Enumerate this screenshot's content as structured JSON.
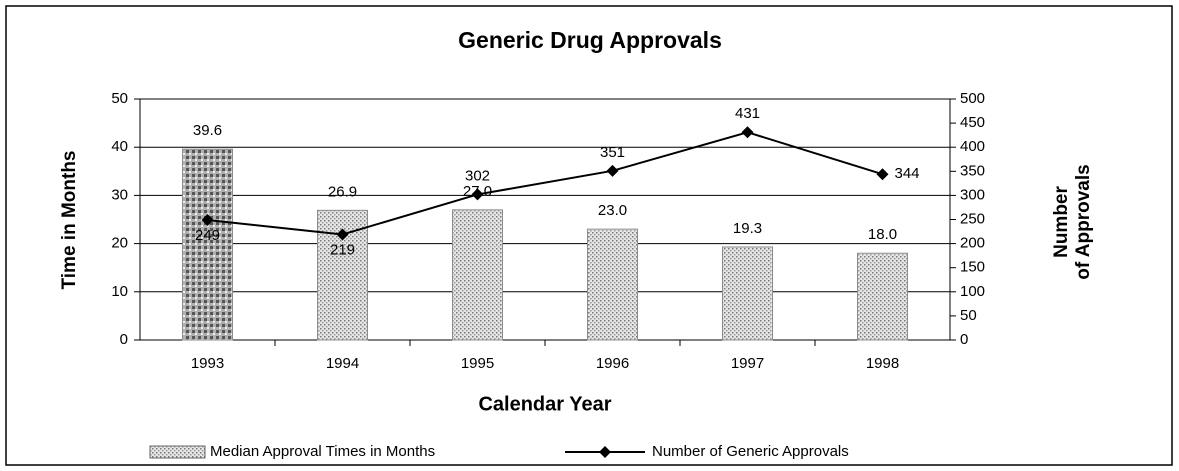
{
  "chart_data": {
    "type": "bar-line",
    "title": "Generic Drug Approvals",
    "xlabel": "Calendar Year",
    "ylabel": "Time in Months",
    "y2label": [
      "Number",
      "of Approvals"
    ],
    "categories": [
      "1993",
      "1994",
      "1995",
      "1996",
      "1997",
      "1998"
    ],
    "series": [
      {
        "name": "Median Approval Times in Months",
        "type": "bar",
        "color": "#8c8c8c",
        "values": [
          39.6,
          26.9,
          27.0,
          23.0,
          19.3,
          18.0
        ],
        "value_labels": [
          "39.6",
          "26.9",
          "27.0",
          "23.0",
          "19.3",
          "18.0"
        ]
      },
      {
        "name": "Number of Generic Approvals",
        "type": "line",
        "color": "#000000",
        "axis": "y2",
        "values": [
          249,
          219,
          302,
          351,
          431,
          344
        ]
      }
    ],
    "ylim": [
      0,
      50
    ],
    "yticks": [
      0,
      10,
      20,
      30,
      40,
      50
    ],
    "y2lim": [
      0,
      500
    ],
    "y2ticks": [
      0,
      50,
      100,
      150,
      200,
      250,
      300,
      350,
      400,
      450,
      500
    ],
    "grid": true,
    "legend": "bottom"
  }
}
